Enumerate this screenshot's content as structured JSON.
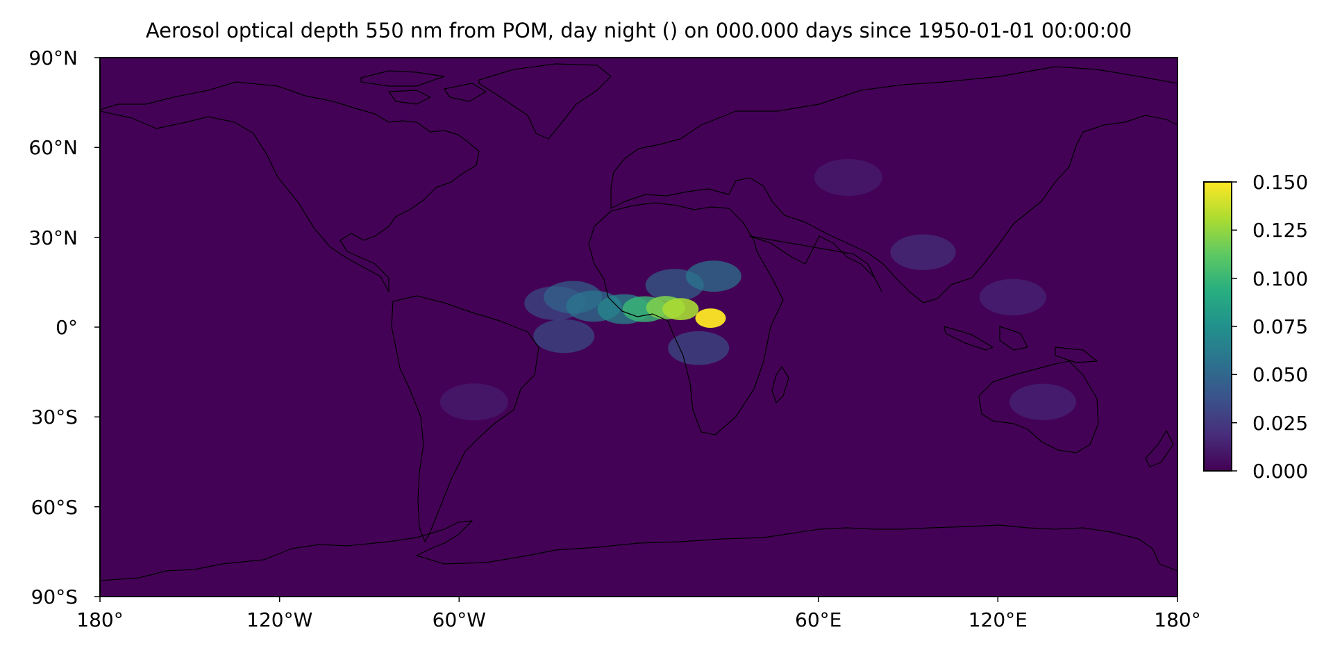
{
  "title": "Aerosol optical depth 550 nm from POM, day night () on 000.000 days since 1950-01-01 00:00:00",
  "chart_data": {
    "type": "heatmap",
    "title": "Aerosol optical depth 550 nm from POM, day night () on 000.000 days since 1950-01-01 00:00:00",
    "projection": "PlateCarree",
    "coastlines": true,
    "colormap": "viridis",
    "lon_range": [
      -180,
      180
    ],
    "lat_range": [
      -90,
      90
    ],
    "value_range": [
      0.0,
      0.15
    ],
    "background_value": 0.003,
    "x_ticks": [
      {
        "value": -180,
        "label": "180°"
      },
      {
        "value": -120,
        "label": "120°W"
      },
      {
        "value": -60,
        "label": "60°W"
      },
      {
        "value": 60,
        "label": "60°E"
      },
      {
        "value": 120,
        "label": "120°E"
      },
      {
        "value": 180,
        "label": "180°"
      }
    ],
    "y_ticks": [
      {
        "value": 90,
        "label": "90°N"
      },
      {
        "value": 60,
        "label": "60°N"
      },
      {
        "value": 30,
        "label": "30°N"
      },
      {
        "value": 0,
        "label": "0°"
      },
      {
        "value": -30,
        "label": "30°S"
      },
      {
        "value": -60,
        "label": "60°S"
      },
      {
        "value": -90,
        "label": "90°S"
      }
    ],
    "colorbar": {
      "location": "right",
      "ticks": [
        "0.000",
        "0.025",
        "0.050",
        "0.075",
        "0.100",
        "0.125",
        "0.150"
      ]
    },
    "plumes": [
      {
        "lon": 24,
        "lat": 3,
        "value": 0.15
      },
      {
        "lon": 14,
        "lat": 6,
        "value": 0.13
      },
      {
        "lon": 9,
        "lat": 6.5,
        "value": 0.12
      },
      {
        "lon": 2,
        "lat": 6,
        "value": 0.1
      },
      {
        "lon": -5,
        "lat": 6,
        "value": 0.07
      },
      {
        "lon": -15,
        "lat": 7,
        "value": 0.06
      },
      {
        "lon": -22,
        "lat": 10,
        "value": 0.05
      },
      {
        "lon": -28,
        "lat": 8,
        "value": 0.04
      },
      {
        "lon": -25,
        "lat": -3,
        "value": 0.04
      },
      {
        "lon": 25,
        "lat": 17,
        "value": 0.06
      },
      {
        "lon": 12,
        "lat": 14,
        "value": 0.05
      },
      {
        "lon": 20,
        "lat": -7,
        "value": 0.04
      },
      {
        "lon": 95,
        "lat": 25,
        "value": 0.025
      },
      {
        "lon": 125,
        "lat": 10,
        "value": 0.02
      },
      {
        "lon": 135,
        "lat": -25,
        "value": 0.02
      },
      {
        "lon": 70,
        "lat": 50,
        "value": 0.015
      },
      {
        "lon": -55,
        "lat": -25,
        "value": 0.015
      }
    ]
  }
}
